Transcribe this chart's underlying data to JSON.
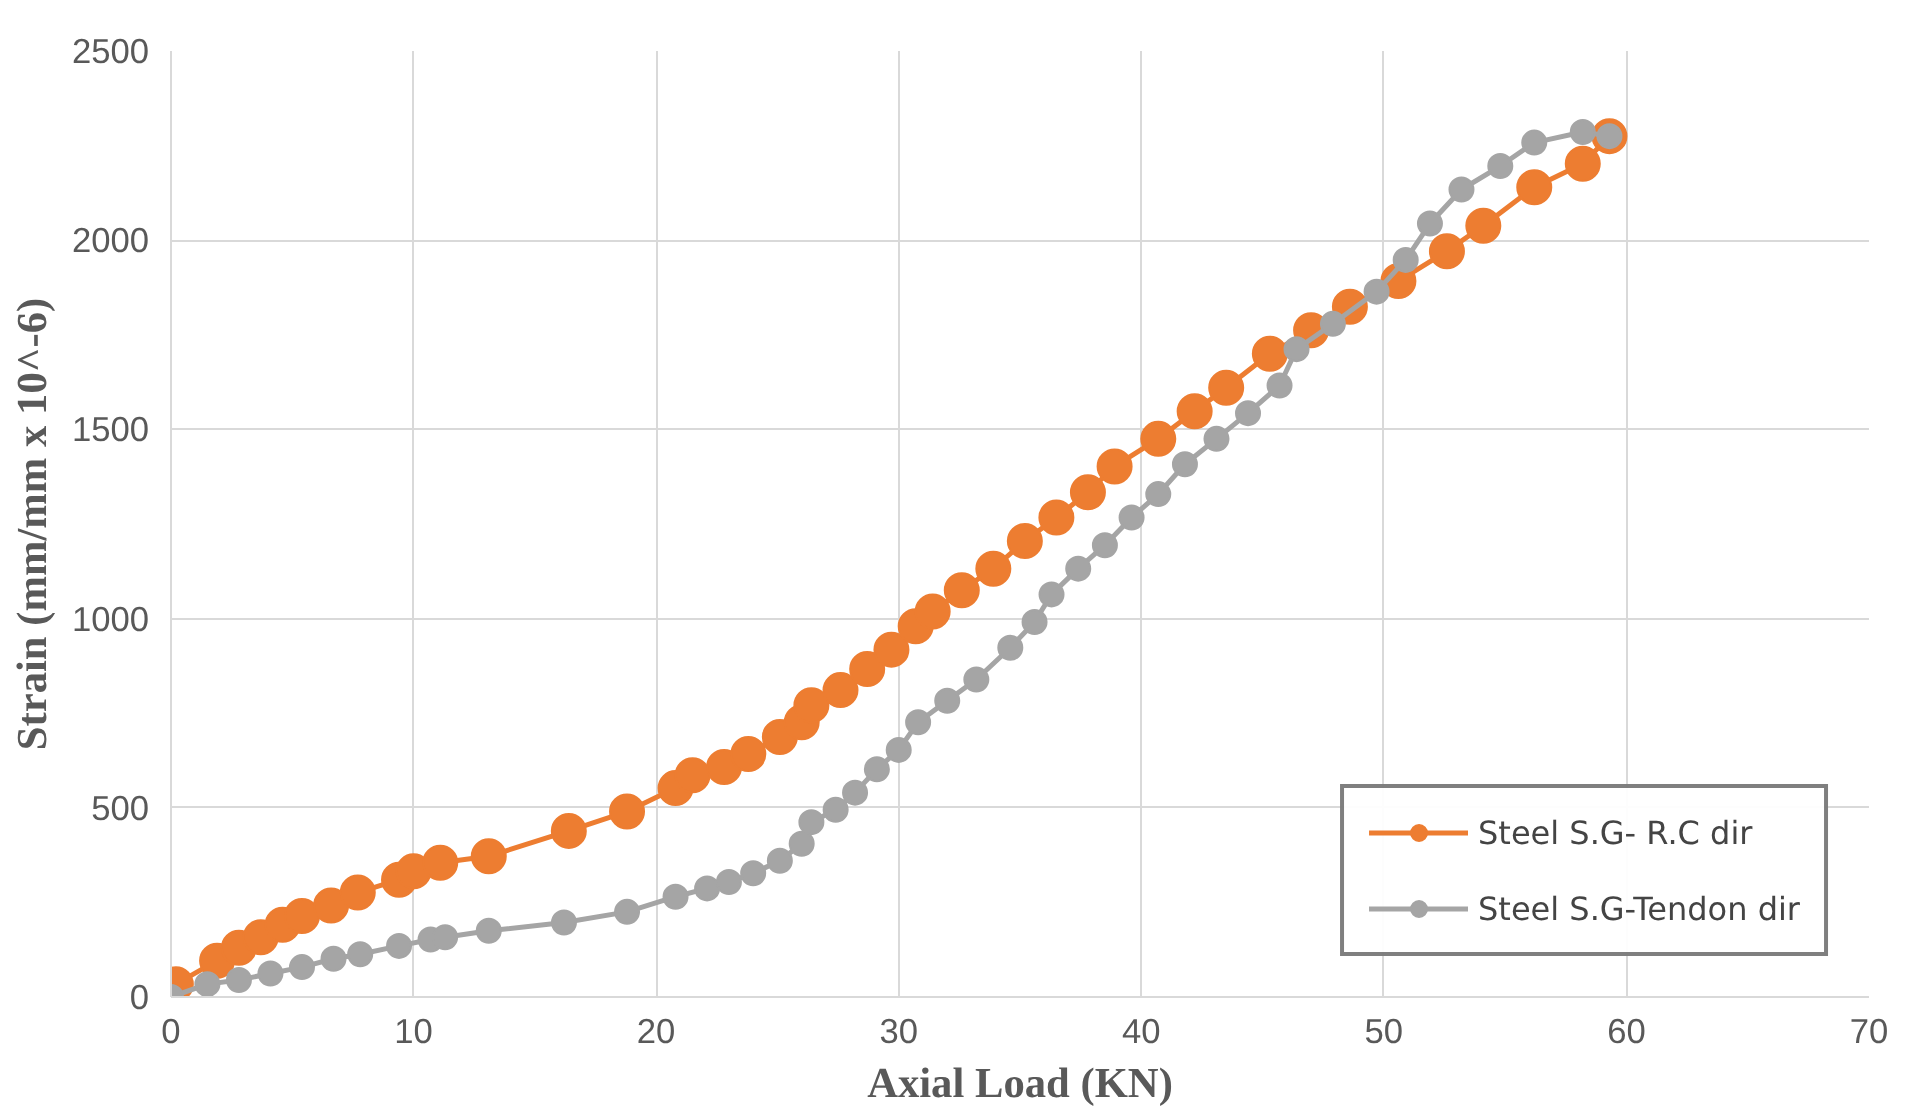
{
  "chart_data": {
    "type": "line",
    "xlabel": "Axial Load (KN)",
    "ylabel": "Strain (mm/mm x 10^-6)",
    "xlim": [
      0,
      70
    ],
    "ylim": [
      0,
      2500
    ],
    "xticks": [
      0,
      10,
      20,
      30,
      40,
      50,
      60,
      70
    ],
    "yticks": [
      0,
      500,
      1000,
      1500,
      2000,
      2500
    ],
    "grid": true,
    "legend": "bottom right",
    "marker": "circle",
    "line_style": "solid",
    "series": [
      {
        "name": "Steel S.G- R.C dir",
        "color": "#ed7d31",
        "x": [
          0.2,
          1.9,
          2.8,
          3.7,
          4.6,
          5.4,
          6.6,
          7.7,
          9.4,
          10,
          11.1,
          13.1,
          16.4,
          18.8,
          20.8,
          21.5,
          22.8,
          23.8,
          25.1,
          26,
          26.4,
          27.6,
          28.7,
          29.7,
          30.7,
          31.4,
          32.6,
          33.9,
          35.2,
          36.5,
          37.8,
          38.9,
          40.7,
          42.2,
          43.5,
          45.3,
          47,
          48.6,
          50.6,
          52.6,
          54.1,
          56.2,
          58.2,
          59.3
        ],
        "values": [
          34,
          96,
          130,
          158,
          191,
          214,
          242,
          276,
          310,
          332,
          355,
          372,
          439,
          490,
          552,
          586,
          608,
          642,
          687,
          726,
          771,
          811,
          867,
          918,
          980,
          1019,
          1075,
          1132,
          1205,
          1267,
          1334,
          1402,
          1475,
          1548,
          1610,
          1700,
          1762,
          1824,
          1892,
          1971,
          2038,
          2140,
          2202,
          2275
        ]
      },
      {
        "name": "Steel S.G-Tendon dir",
        "color": "#a5a5a5",
        "x": [
          0,
          1.5,
          2.8,
          4.1,
          5.4,
          6.7,
          7.8,
          9.4,
          10.7,
          11.3,
          13.1,
          16.2,
          18.8,
          20.8,
          22.1,
          23,
          24,
          25.1,
          26,
          26.4,
          27.4,
          28.2,
          29.1,
          30,
          30.8,
          32,
          33.2,
          34.6,
          35.6,
          36.3,
          37.4,
          38.5,
          39.6,
          40.7,
          41.8,
          43.1,
          44.4,
          45.7,
          46.4,
          47.9,
          49.7,
          50.9,
          51.9,
          53.2,
          54.8,
          56.2,
          58.2,
          59.3
        ],
        "values": [
          0,
          34,
          45,
          62,
          79,
          101,
          113,
          135,
          152,
          158,
          175,
          197,
          225,
          265,
          287,
          304,
          327,
          360,
          405,
          462,
          495,
          540,
          602,
          653,
          726,
          783,
          839,
          923,
          991,
          1064,
          1132,
          1194,
          1267,
          1329,
          1408,
          1475,
          1543,
          1616,
          1712,
          1779,
          1864,
          1948,
          2044,
          2134,
          2196,
          2258,
          2286,
          2275
        ]
      }
    ]
  }
}
